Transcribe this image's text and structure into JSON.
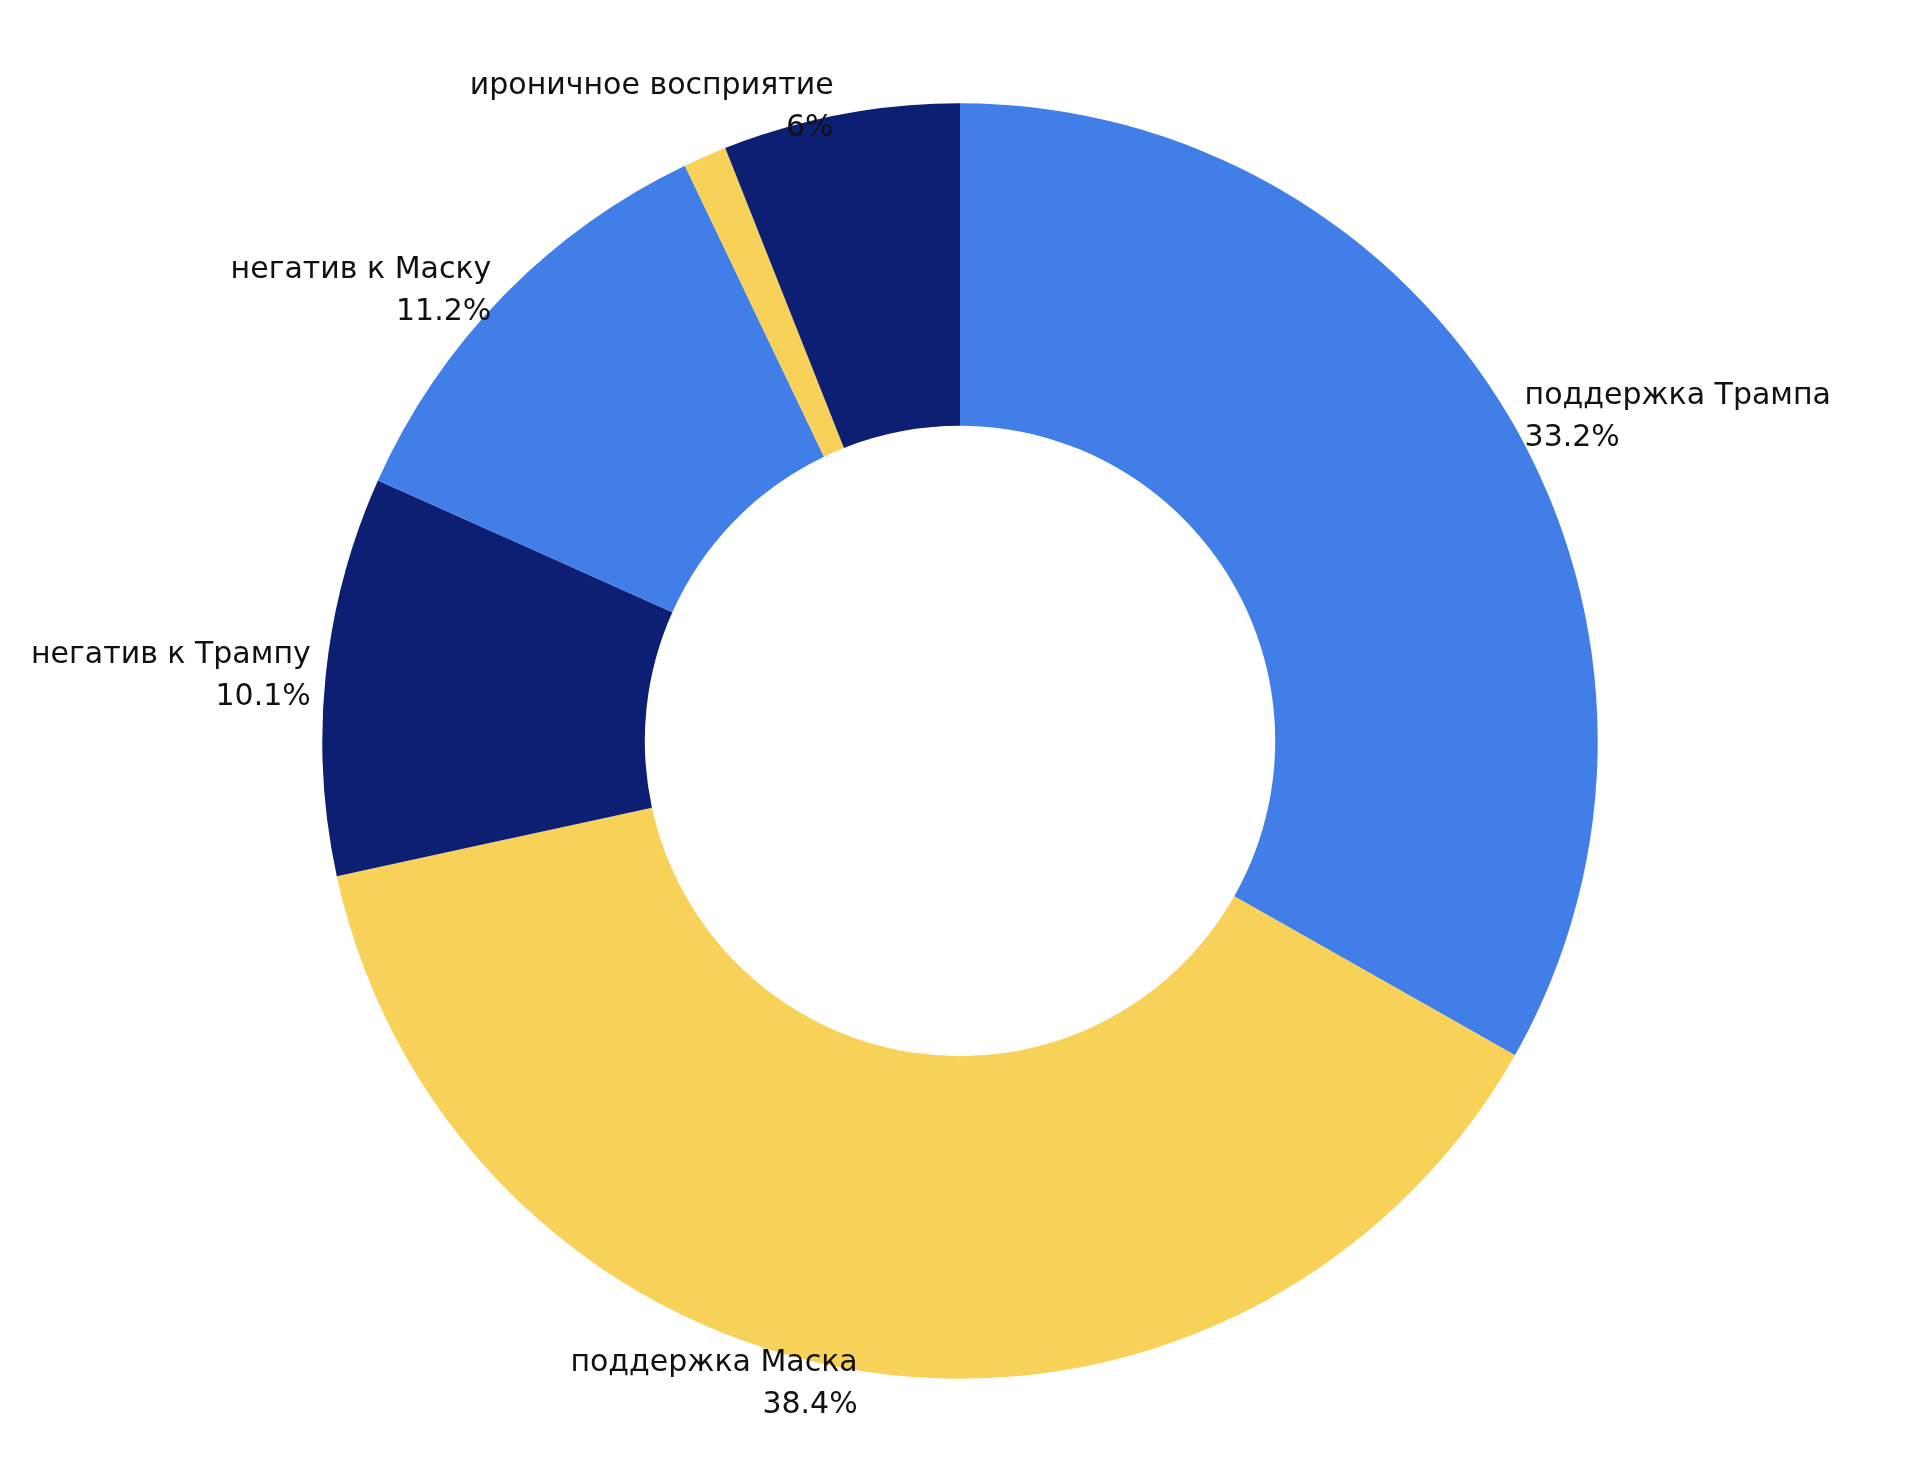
{
  "chart_data": {
    "type": "donut",
    "categories": [
      "поддержка Трампа",
      "поддержка Маска",
      "негатив к Трампу",
      "негатив к Маску",
      null,
      "ироничное восприятие"
    ],
    "values": [
      33.2,
      38.4,
      10.1,
      11.2,
      1.1,
      6
    ],
    "value_labels": [
      "33.2%",
      "38.4%",
      "10.1%",
      "11.2%",
      null,
      "6%"
    ],
    "colors": [
      "#427ee8",
      "#f8d158",
      "#0c1f72",
      "#427ee8",
      "#f8d158",
      "#0c1f72"
    ]
  }
}
